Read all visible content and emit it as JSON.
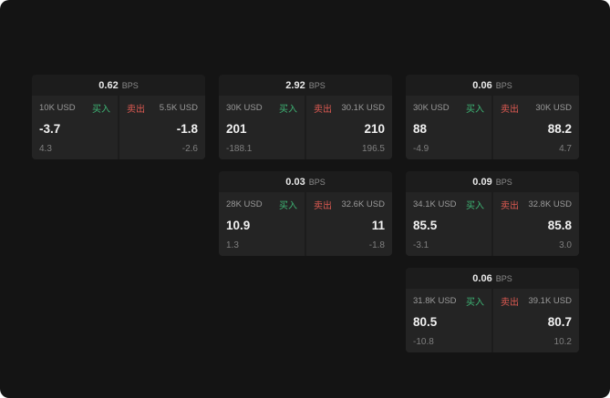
{
  "labels": {
    "bps": "BPS",
    "buy": "买入",
    "sell": "卖出"
  },
  "colors": {
    "background": "#141414",
    "card": "#1c1c1c",
    "panel": "#242424",
    "buy_green": "#3eb575",
    "sell_red": "#de5a52",
    "text_primary": "#f0f0f0",
    "text_muted": "#8a8a8a"
  },
  "cards": [
    {
      "bps": "0.62",
      "buy": {
        "size": "10K USD",
        "price": "-3.7",
        "sub": "4.3"
      },
      "sell": {
        "size": "5.5K USD",
        "price": "-1.8",
        "sub": "-2.6"
      }
    },
    {
      "bps": "2.92",
      "buy": {
        "size": "30K USD",
        "price": "201",
        "sub": "-188.1"
      },
      "sell": {
        "size": "30.1K USD",
        "price": "210",
        "sub": "196.5"
      }
    },
    {
      "bps": "0.06",
      "buy": {
        "size": "30K USD",
        "price": "88",
        "sub": "-4.9"
      },
      "sell": {
        "size": "30K USD",
        "price": "88.2",
        "sub": "4.7"
      }
    },
    {
      "bps": "0.03",
      "buy": {
        "size": "28K USD",
        "price": "10.9",
        "sub": "1.3"
      },
      "sell": {
        "size": "32.6K USD",
        "price": "11",
        "sub": "-1.8"
      }
    },
    {
      "bps": "0.09",
      "buy": {
        "size": "34.1K USD",
        "price": "85.5",
        "sub": "-3.1"
      },
      "sell": {
        "size": "32.8K USD",
        "price": "85.8",
        "sub": "3.0"
      }
    },
    {
      "bps": "0.06",
      "buy": {
        "size": "31.8K USD",
        "price": "80.5",
        "sub": "-10.8"
      },
      "sell": {
        "size": "39.1K USD",
        "price": "80.7",
        "sub": "10.2"
      }
    }
  ]
}
